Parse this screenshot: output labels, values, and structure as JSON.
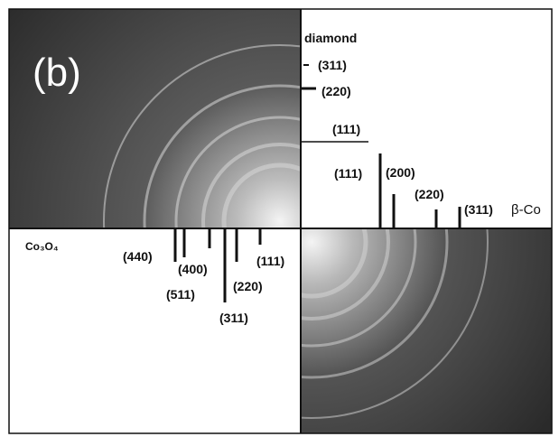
{
  "panel_label": "(b)",
  "diamond": {
    "title": "diamond",
    "peaks": [
      "(311)",
      "(220)",
      "(111)"
    ]
  },
  "beta_co": {
    "title": "β-Co",
    "peaks": [
      "(111)",
      "(200)",
      "(220)",
      "(311)"
    ]
  },
  "co3o4": {
    "title": "Co₃O₄",
    "peaks": [
      "(440)",
      "(400)",
      "(511)",
      "(220)",
      "(311)",
      "(111)"
    ]
  }
}
